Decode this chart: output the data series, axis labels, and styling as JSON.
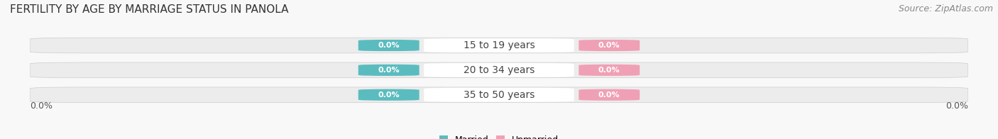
{
  "title": "FERTILITY BY AGE BY MARRIAGE STATUS IN PANOLA",
  "source": "Source: ZipAtlas.com",
  "categories": [
    "15 to 19 years",
    "20 to 34 years",
    "35 to 50 years"
  ],
  "married_values": [
    "0.0%",
    "0.0%",
    "0.0%"
  ],
  "unmarried_values": [
    "0.0%",
    "0.0%",
    "0.0%"
  ],
  "married_color": "#5bbcbf",
  "unmarried_color": "#f0a0b5",
  "bar_bg_color_light": "#ebebeb",
  "bar_bg_color_dark": "#e0e0e0",
  "center_bg_color": "#f5f5f5",
  "title_fontsize": 11,
  "source_fontsize": 9,
  "axis_label_fontsize": 9,
  "legend_fontsize": 9,
  "pill_fontsize": 8,
  "cat_fontsize": 10,
  "xlim_left": "0.0%",
  "xlim_right": "0.0%",
  "bg_color": "#f8f8f8"
}
